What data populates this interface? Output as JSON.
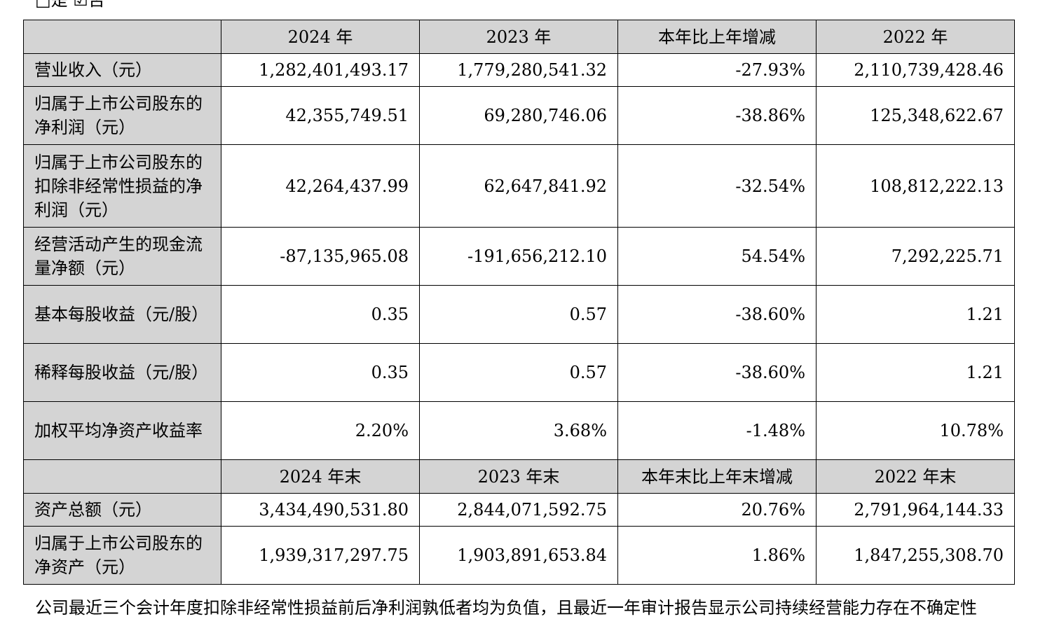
{
  "top_fragment": "□是 ☑否",
  "header1": [
    "",
    "2024 年",
    "2023 年",
    "本年比上年增减",
    "2022 年"
  ],
  "rows1": [
    {
      "label": "营业收入（元）",
      "values": [
        "1,282,401,493.17",
        "1,779,280,541.32",
        "-27.93%",
        "2,110,739,428.46"
      ]
    },
    {
      "label": "归属于上市公司股东的净利润（元）",
      "values": [
        "42,355,749.51",
        "69,280,746.06",
        "-38.86%",
        "125,348,622.67"
      ]
    },
    {
      "label": "归属于上市公司股东的扣除非经常性损益的净利润（元）",
      "values": [
        "42,264,437.99",
        "62,647,841.92",
        "-32.54%",
        "108,812,222.13"
      ]
    },
    {
      "label": "经营活动产生的现金流量净额（元）",
      "values": [
        "-87,135,965.08",
        "-191,656,212.10",
        "54.54%",
        "7,292,225.71"
      ]
    },
    {
      "label": "基本每股收益（元/股）",
      "values": [
        "0.35",
        "0.57",
        "-38.60%",
        "1.21"
      ]
    },
    {
      "label": "稀释每股收益（元/股）",
      "values": [
        "0.35",
        "0.57",
        "-38.60%",
        "1.21"
      ]
    },
    {
      "label": "加权平均净资产收益率",
      "values": [
        "2.20%",
        "3.68%",
        "-1.48%",
        "10.78%"
      ]
    }
  ],
  "header2": [
    "",
    "2024 年末",
    "2023 年末",
    "本年末比上年末增减",
    "2022 年末"
  ],
  "rows2": [
    {
      "label": "资产总额（元）",
      "values": [
        "3,434,490,531.80",
        "2,844,071,592.75",
        "20.76%",
        "2,791,964,144.33"
      ]
    },
    {
      "label": "归属于上市公司股东的净资产（元）",
      "values": [
        "1,939,317,297.75",
        "1,903,891,653.84",
        "1.86%",
        "1,847,255,308.70"
      ]
    }
  ],
  "note": "公司最近三个会计年度扣除非经常性损益前后净利润孰低者均为负值，且最近一年审计报告显示公司持续经营能力存在不确定性"
}
